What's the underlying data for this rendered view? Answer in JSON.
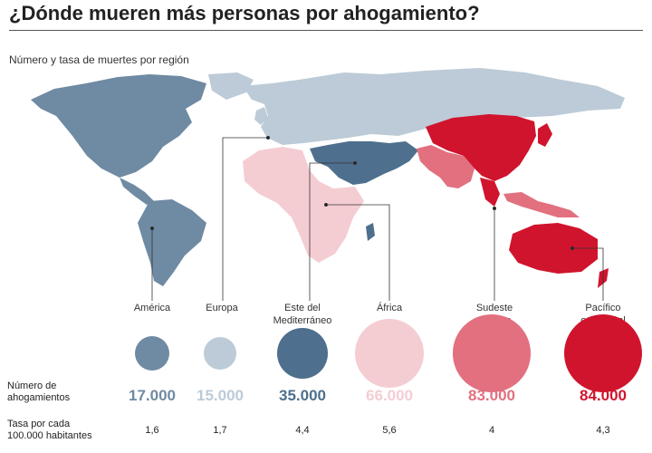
{
  "title": "¿Dónde mueren más personas por ahogamiento?",
  "subtitle": "Número y tasa de muertes por región",
  "row_labels": {
    "deaths": "Número de\nahogamientos",
    "rate": "Tasa por cada\n100.000 habitantes"
  },
  "colors": {
    "america": "#6f8aa3",
    "europa": "#bccbd7",
    "mediterraneo": "#4e6f8d",
    "africa": "#f4cdd3",
    "sudeste": "#e2707f",
    "pacifico": "#d0142d"
  },
  "regions": [
    {
      "id": "america",
      "label": "América",
      "deaths": "17.000",
      "rate": "1,6",
      "deaths_value": 17000
    },
    {
      "id": "europa",
      "label": "Europa",
      "deaths": "15.000",
      "rate": "1,7",
      "deaths_value": 15000
    },
    {
      "id": "mediterraneo",
      "label": "Este del\nMediterráneo",
      "deaths": "35.000",
      "rate": "4,4",
      "deaths_value": 35000
    },
    {
      "id": "africa",
      "label": "África",
      "deaths": "66.000",
      "rate": "5,6",
      "deaths_value": 66000
    },
    {
      "id": "sudeste",
      "label": "Sudeste\nasiático",
      "deaths": "83.000",
      "rate": "4",
      "deaths_value": 83000
    },
    {
      "id": "pacifico",
      "label": "Pacífico\noccidental",
      "deaths": "84.000",
      "rate": "4,3",
      "deaths_value": 84000
    }
  ]
}
